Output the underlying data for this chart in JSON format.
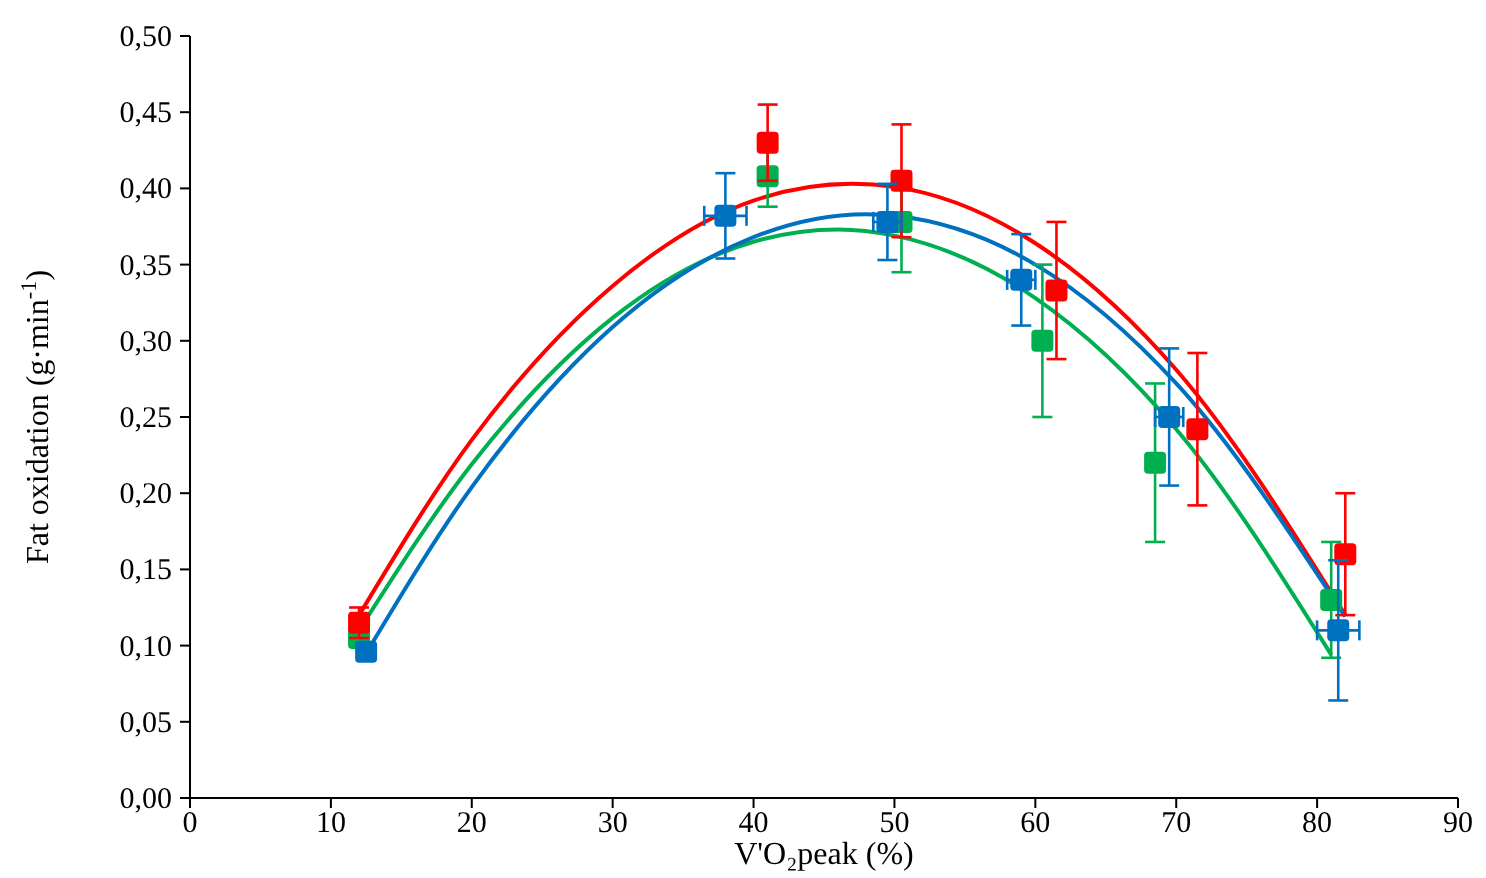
{
  "chart_data": {
    "type": "scatter",
    "xlabel": "V'O₂peak (%)",
    "ylabel": "Fat oxidation (g·min$^{-1}$)",
    "xlim": [
      0,
      90
    ],
    "xticks": [
      0,
      10,
      20,
      30,
      40,
      50,
      60,
      70,
      80,
      90
    ],
    "ylim": [
      0,
      0.5
    ],
    "yticks": [
      {
        "value": 0,
        "label": "0,00"
      },
      {
        "value": 0.05,
        "label": "0,05"
      },
      {
        "value": 0.1,
        "label": "0,10"
      },
      {
        "value": 0.15,
        "label": "0,15"
      },
      {
        "value": 0.2,
        "label": "0,20"
      },
      {
        "value": 0.25,
        "label": "0,25"
      },
      {
        "value": 0.3,
        "label": "0,30"
      },
      {
        "value": 0.35,
        "label": "0,35"
      },
      {
        "value": 0.4,
        "label": "0,40"
      },
      {
        "value": 0.45,
        "label": "0,45"
      },
      {
        "value": 0.5,
        "label": "0,50"
      }
    ],
    "marker": "square",
    "grid": false,
    "series": [
      {
        "type": "line",
        "marker": "none",
        "color": "#ff0000",
        "x": [
          12,
          20,
          30,
          40,
          47,
          50,
          60,
          70,
          82
        ],
        "values": [
          0.12,
          0.235,
          0.336,
          0.392,
          0.403,
          0.401,
          0.364,
          0.281,
          0.12
        ]
      },
      {
        "type": "line",
        "marker": "none",
        "color": "#00b050",
        "x": [
          12,
          20,
          30,
          40,
          46,
          50,
          60,
          70,
          81
        ],
        "values": [
          0.11,
          0.219,
          0.315,
          0.365,
          0.373,
          0.369,
          0.328,
          0.242,
          0.094
        ]
      },
      {
        "type": "line",
        "marker": "none",
        "color": "#0070c0",
        "x": [
          12.5,
          20,
          30,
          40,
          48,
          50,
          60,
          70,
          82
        ],
        "values": [
          0.095,
          0.204,
          0.309,
          0.368,
          0.383,
          0.382,
          0.35,
          0.272,
          0.119
        ]
      },
      {
        "color": "#00b050",
        "x": [
          12,
          41,
          50.5,
          60.5,
          68.5,
          81
        ],
        "values": [
          0.105,
          0.408,
          0.378,
          0.3,
          0.22,
          0.13
        ],
        "errors": [
          null,
          0.02,
          0.033,
          0.05,
          0.052,
          0.038
        ]
      },
      {
        "color": "#ff0000",
        "x": [
          12,
          41,
          50.5,
          61.5,
          71.5,
          82
        ],
        "values": [
          0.115,
          0.43,
          0.405,
          0.333,
          0.242,
          0.16
        ],
        "errors": [
          0.01,
          0.025,
          0.037,
          0.045,
          0.05,
          0.04
        ]
      },
      {
        "color": "#0070c0",
        "x": [
          12.5,
          38,
          49.5,
          59,
          69.5,
          81.5
        ],
        "values": [
          0.096,
          0.382,
          0.378,
          0.34,
          0.25,
          0.11
        ],
        "errors": [
          null,
          0.028,
          0.025,
          0.03,
          0.045,
          0.046
        ],
        "xerrors": [
          null,
          1.5,
          1,
          1,
          1,
          1.5
        ]
      }
    ]
  }
}
